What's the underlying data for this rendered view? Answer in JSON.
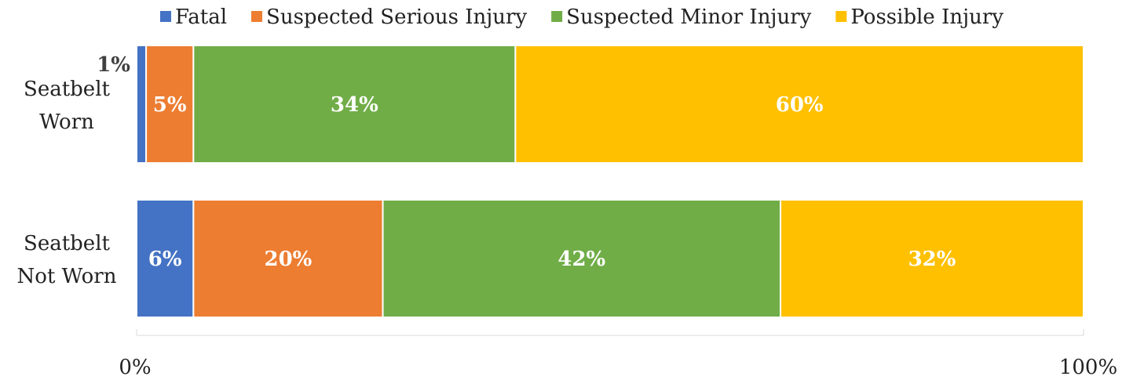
{
  "chart_data": {
    "type": "stacked_bar_horizontal",
    "categories": [
      "Seatbelt Worn",
      "Seatbelt Not Worn"
    ],
    "series": [
      {
        "name": "Fatal",
        "color": "#4472c4",
        "values": [
          1,
          6
        ],
        "value_labels": [
          "1%",
          "6%"
        ]
      },
      {
        "name": "Suspected Serious Injury",
        "color": "#ed7d31",
        "values": [
          5,
          20
        ],
        "value_labels": [
          "5%",
          "20%"
        ]
      },
      {
        "name": "Suspected Minor Injury",
        "color": "#70ad47",
        "values": [
          34,
          42
        ],
        "value_labels": [
          "34%",
          "42%"
        ]
      },
      {
        "name": "Possible Injury",
        "color": "#ffc000",
        "values": [
          60,
          32
        ],
        "value_labels": [
          "60%",
          "32%"
        ]
      }
    ],
    "xlim": [
      0,
      100
    ],
    "xticks": [
      {
        "value": 0,
        "label": "0%"
      },
      {
        "value": 100,
        "label": "100%"
      }
    ],
    "legend": "top"
  }
}
